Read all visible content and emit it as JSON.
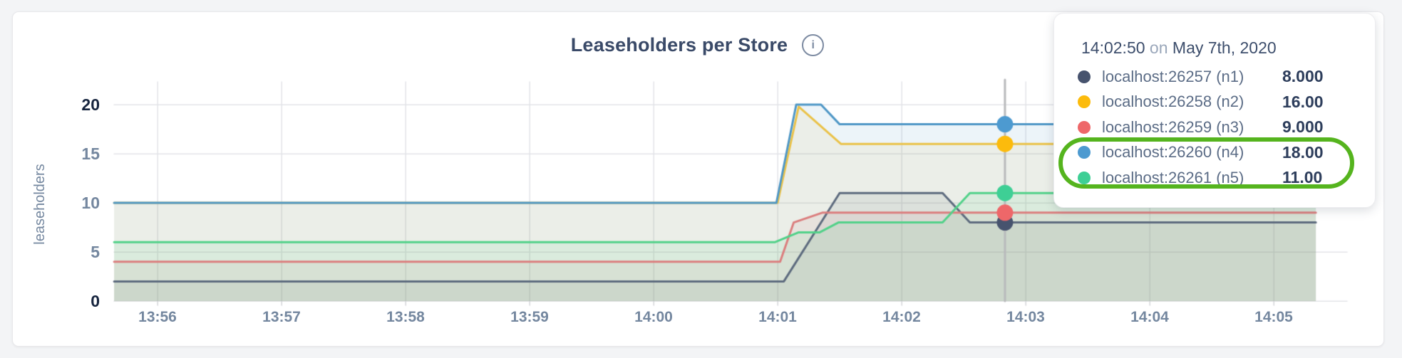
{
  "header": {
    "info_icon": "i"
  },
  "chart_data": {
    "type": "line",
    "title": "Leaseholders per Store",
    "xlabel": "",
    "ylabel": "leaseholders",
    "x_ticks": [
      "13:56",
      "13:57",
      "13:58",
      "13:59",
      "14:00",
      "14:01",
      "14:02",
      "14:03",
      "14:04",
      "14:05"
    ],
    "y_ticks": [
      0,
      5,
      10,
      15,
      20
    ],
    "ylim": [
      0,
      20
    ],
    "x_unit": "minutes after 13:56",
    "xlim": [
      -0.35,
      9.59
    ],
    "grid": true,
    "legend_position": "tooltip",
    "fill_alpha": 0.11,
    "series": [
      {
        "name": "localhost:26257 (n1)",
        "color": "#5d6b7e",
        "dot_color": "#47536e",
        "points": [
          [
            -0.35,
            2
          ],
          [
            5.05,
            2
          ],
          [
            5.5,
            11
          ],
          [
            6.33,
            11
          ],
          [
            6.55,
            8
          ],
          [
            9.34,
            8
          ]
        ]
      },
      {
        "name": "localhost:26258 (n2)",
        "color": "#eac249",
        "dot_color": "#fcbb0c",
        "points": [
          [
            -0.35,
            10
          ],
          [
            5.0,
            10
          ],
          [
            5.17,
            19.8
          ],
          [
            5.51,
            16
          ],
          [
            9.34,
            16
          ]
        ]
      },
      {
        "name": "localhost:26259 (n3)",
        "color": "#db7e7e",
        "dot_color": "#ee6769",
        "points": [
          [
            -0.35,
            4
          ],
          [
            5.02,
            4
          ],
          [
            5.13,
            8
          ],
          [
            5.36,
            9
          ],
          [
            9.34,
            9
          ]
        ]
      },
      {
        "name": "localhost:26260 (n4)",
        "color": "#4f97c6",
        "dot_color": "#4d9ad0",
        "points": [
          [
            -0.35,
            10
          ],
          [
            4.99,
            10
          ],
          [
            5.15,
            20
          ],
          [
            5.35,
            20
          ],
          [
            5.5,
            18
          ],
          [
            9.34,
            18
          ]
        ]
      },
      {
        "name": "localhost:26261 (n5)",
        "color": "#52d189",
        "dot_color": "#3ecf95",
        "points": [
          [
            -0.35,
            6
          ],
          [
            4.98,
            6
          ],
          [
            5.17,
            7
          ],
          [
            5.34,
            7
          ],
          [
            5.49,
            8
          ],
          [
            6.33,
            8
          ],
          [
            6.55,
            11
          ],
          [
            9.34,
            11
          ]
        ]
      }
    ],
    "hover": {
      "x": 6.833,
      "time": "14:02:50",
      "values": [
        8,
        16,
        9,
        18,
        11
      ]
    }
  },
  "tooltip": {
    "time": "14:02:50",
    "on_word": "on",
    "date": "May 7th, 2020",
    "rows": [
      {
        "label": "localhost:26257 (n1)",
        "value": "8.000"
      },
      {
        "label": "localhost:26258 (n2)",
        "value": "16.00"
      },
      {
        "label": "localhost:26259 (n3)",
        "value": "9.000"
      },
      {
        "label": "localhost:26260 (n4)",
        "value": "18.00"
      },
      {
        "label": "localhost:26261 (n5)",
        "value": "11.00"
      }
    ],
    "highlight_color": "#55b41e"
  },
  "colors": {
    "page_background": "#f3f4f6",
    "card_background": "#ffffff",
    "gridline": "#e3e4e8",
    "hover_line": "#b9babc",
    "axis_text": "#74879f",
    "axis_text_edge": "#16243e",
    "title_text": "#3a4a68"
  }
}
